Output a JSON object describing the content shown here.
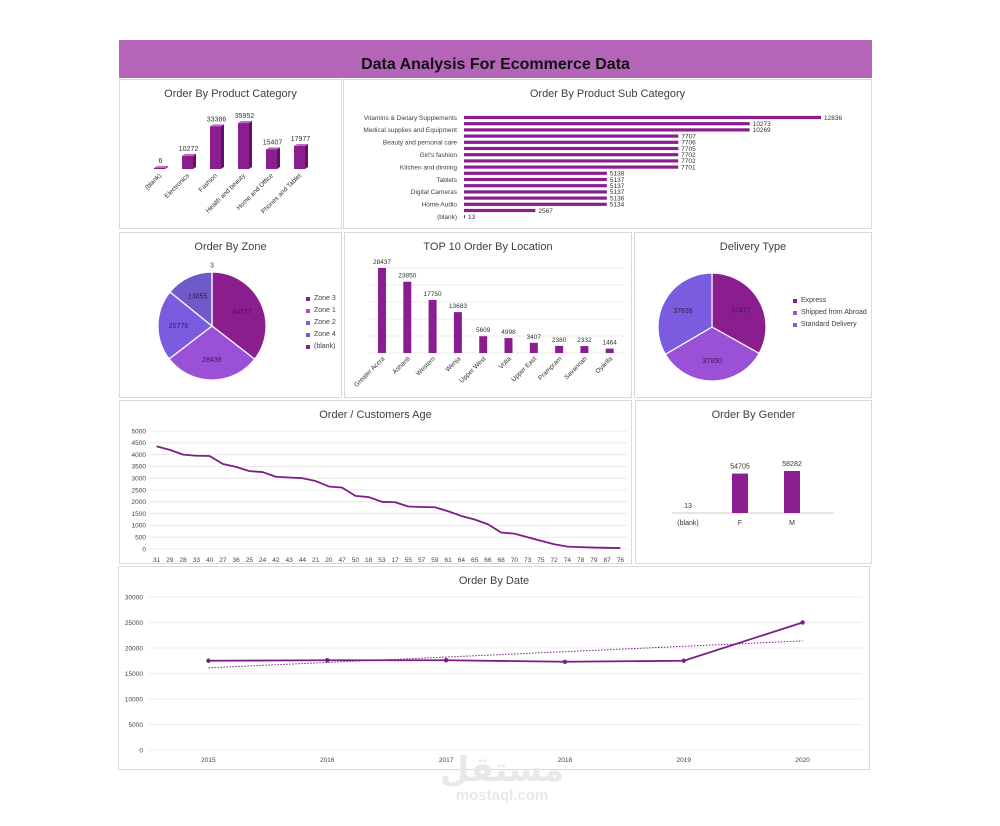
{
  "header": {
    "title": "Data Analysis For Ecommerce Data"
  },
  "colors": {
    "banner": "#b565b8",
    "bar": "#8b1e8f",
    "line": "#7b1f86",
    "zone3": "#8b1e8f",
    "zone1": "#9b50d8",
    "zone2": "#7b5be0",
    "zone4": "#6e5ac8"
  },
  "category_chart": {
    "title": "Order By Product Category",
    "chart_data": {
      "type": "bar",
      "categories": [
        "(blank)",
        "Electronics",
        "Fashion",
        "Health and beauty",
        "Home and Office",
        "Phones and Tablet"
      ],
      "values": [
        6,
        10272,
        33386,
        35952,
        15407,
        17977
      ]
    }
  },
  "subcategory_chart": {
    "title": "Order By Product Sub Category",
    "chart_data": {
      "type": "bar",
      "orientation": "horizontal",
      "categories": [
        "Vitamins & Dietary Supplements",
        "",
        "Medical supplies and Equipment",
        "",
        "Beauty and personal care",
        "",
        "Girl's fashion",
        "",
        "Kitchen and dinning",
        "",
        "Tablets",
        "",
        "Digital Cameras",
        "",
        "Home Audio",
        "",
        "(blank)"
      ],
      "values": [
        12836,
        10273,
        10269,
        7707,
        7706,
        7705,
        7702,
        7702,
        7701,
        5138,
        5137,
        5137,
        5137,
        5136,
        5134,
        2567,
        13
      ]
    }
  },
  "zone_chart": {
    "title": "Order By Zone",
    "chart_data": {
      "type": "pie",
      "labels": [
        "Zone 3",
        "Zone 1",
        "Zone 2",
        "Zone 4",
        "(blank)"
      ],
      "values": [
        34717,
        28439,
        20776,
        13855,
        3
      ],
      "legend": "right"
    }
  },
  "location_chart": {
    "title": "TOP 10 Order By Location",
    "chart_data": {
      "type": "bar",
      "categories": [
        "Greater Accra",
        "Ashanti",
        "Western",
        "Wenja",
        "Upper West",
        "Volta",
        "Upper East",
        "Prampram",
        "Savannah",
        "Oyarifa"
      ],
      "values": [
        28437,
        23850,
        17750,
        13683,
        5609,
        4998,
        3407,
        2380,
        2332,
        1464
      ]
    }
  },
  "delivery_chart": {
    "title": "Delivery Type",
    "chart_data": {
      "type": "pie",
      "labels": [
        "Express",
        "Shipped from Abroad",
        "Standard Delivery"
      ],
      "values": [
        37477,
        37850,
        37838
      ],
      "legend": "right"
    }
  },
  "age_chart": {
    "title": "Order / Customers Age",
    "chart_data": {
      "type": "line",
      "x": [
        "31",
        "29",
        "28",
        "33",
        "40",
        "27",
        "36",
        "25",
        "24",
        "42",
        "43",
        "44",
        "21",
        "20",
        "47",
        "50",
        "18",
        "53",
        "17",
        "55",
        "57",
        "59",
        "61",
        "64",
        "65",
        "66",
        "68",
        "70",
        "73",
        "75",
        "72",
        "74",
        "78",
        "79",
        "87",
        "76"
      ],
      "y": [
        4350,
        4200,
        4000,
        3950,
        3940,
        3600,
        3480,
        3300,
        3260,
        3060,
        3030,
        3000,
        2880,
        2650,
        2600,
        2250,
        2200,
        2000,
        1980,
        1800,
        1780,
        1770,
        1600,
        1400,
        1250,
        1050,
        700,
        650,
        500,
        350,
        200,
        100,
        80,
        60,
        50,
        40
      ],
      "yticks": [
        "0",
        "500",
        "1000",
        "1500",
        "2000",
        "2500",
        "3000",
        "3500",
        "4000",
        "4500",
        "5000"
      ],
      "ylim": [
        0,
        5000
      ],
      "grid": true
    }
  },
  "gender_chart": {
    "title": "Order By Gender",
    "chart_data": {
      "type": "bar",
      "categories": [
        "(blank)",
        "F",
        "M"
      ],
      "values": [
        13,
        54705,
        58282
      ]
    }
  },
  "date_chart": {
    "title": "Order By Date",
    "chart_data": {
      "type": "line",
      "x": [
        "2015",
        "2016",
        "2017",
        "2018",
        "2019",
        "2020"
      ],
      "y": [
        17500,
        17600,
        17600,
        17300,
        17500,
        25000
      ],
      "trendline": "linear",
      "yticks": [
        "0",
        "5000",
        "10000",
        "15000",
        "20000",
        "25000",
        "30000"
      ],
      "ylim": [
        0,
        30000
      ],
      "grid": true
    }
  },
  "watermark": {
    "arabic": "مستقل",
    "latin": "mostaql.com"
  }
}
